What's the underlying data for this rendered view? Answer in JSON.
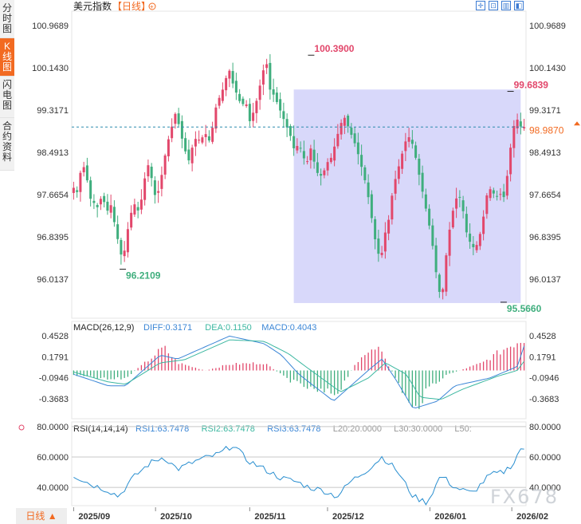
{
  "sidebar": {
    "tabs": [
      {
        "label": "分时图",
        "active": false
      },
      {
        "label": "K线图",
        "active": true
      },
      {
        "label": "闪电图",
        "active": false
      },
      {
        "label": "合约资料",
        "active": false
      }
    ]
  },
  "header": {
    "title": "美元指数",
    "period": "【日线】",
    "mode_icon": "circle-plus-icon"
  },
  "toolbar": {
    "icons": [
      "expand-icon",
      "compress-icon",
      "chart-toggle-icon",
      "back-icon"
    ]
  },
  "period_button": {
    "label": "日线 ▲"
  },
  "watermark": "FX678",
  "colors": {
    "up": "#e2476b",
    "down": "#3fae7d",
    "highlight": "#d4d4fa",
    "current": "#f26a21",
    "diff": "#3b86d6",
    "dea": "#3bb7a0"
  },
  "chart_data": [
    {
      "type": "candlestick",
      "title": "美元指数【日线】",
      "y_ticks": [
        "100.9689",
        "100.1430",
        "99.3171",
        "98.4913",
        "97.6654",
        "96.8395",
        "96.0137"
      ],
      "ylim": [
        95.3,
        101.25
      ],
      "x_ticks": [
        "2025/09",
        "2025/10",
        "2025/11",
        "2025/12",
        "2026/01",
        "2026/02"
      ],
      "x_tick_index": [
        0,
        20,
        43,
        62,
        87,
        107
      ],
      "current_price": "98.9870",
      "current_value": 98.987,
      "annotations": [
        {
          "label": "100.3900",
          "index": 58,
          "value": 100.39
        },
        {
          "label": "96.2109",
          "index": 12,
          "value": 96.2109
        },
        {
          "label": "95.5660",
          "index": 105,
          "value": 95.566
        },
        {
          "label": "99.6839",
          "index": 129,
          "value": 99.6839
        }
      ],
      "highlight": {
        "from_index": 65,
        "to_index": 132,
        "top": 99.72,
        "bottom": 95.55
      },
      "anchors": [
        [
          0,
          97.8
        ],
        [
          1,
          97.7
        ],
        [
          2,
          98.3
        ],
        [
          3,
          98.1
        ],
        [
          4,
          97.6
        ],
        [
          5,
          97.5
        ],
        [
          6,
          97.4
        ],
        [
          7,
          97.7
        ],
        [
          8,
          97.3
        ],
        [
          9,
          97.5
        ],
        [
          10,
          97.1
        ],
        [
          11,
          96.7
        ],
        [
          12,
          96.35
        ],
        [
          13,
          96.9
        ],
        [
          14,
          97.3
        ],
        [
          15,
          97.5
        ],
        [
          16,
          97.3
        ],
        [
          17,
          97.8
        ],
        [
          18,
          98.3
        ],
        [
          19,
          98.0
        ],
        [
          20,
          97.6
        ],
        [
          21,
          97.8
        ],
        [
          22,
          98.3
        ],
        [
          23,
          98.7
        ],
        [
          24,
          99.0
        ],
        [
          25,
          99.3
        ],
        [
          26,
          98.9
        ],
        [
          27,
          98.6
        ],
        [
          28,
          98.3
        ],
        [
          29,
          98.6
        ],
        [
          30,
          98.8
        ],
        [
          31,
          98.7
        ],
        [
          32,
          98.9
        ],
        [
          33,
          98.7
        ],
        [
          34,
          99.0
        ],
        [
          35,
          99.5
        ],
        [
          36,
          99.6
        ],
        [
          37,
          99.9
        ],
        [
          38,
          100.1
        ],
        [
          39,
          99.8
        ],
        [
          40,
          99.6
        ],
        [
          41,
          99.4
        ],
        [
          42,
          99.5
        ],
        [
          43,
          99.1
        ],
        [
          44,
          99.3
        ],
        [
          45,
          99.6
        ],
        [
          46,
          100.0
        ],
        [
          47,
          100.3
        ],
        [
          48,
          99.7
        ],
        [
          49,
          99.6
        ],
        [
          50,
          99.4
        ],
        [
          51,
          99.2
        ],
        [
          52,
          99.0
        ],
        [
          53,
          98.8
        ],
        [
          54,
          98.5
        ],
        [
          55,
          98.7
        ],
        [
          56,
          98.4
        ],
        [
          57,
          98.3
        ],
        [
          58,
          98.6
        ],
        [
          59,
          98.2
        ],
        [
          60,
          98.0
        ],
        [
          61,
          98.1
        ],
        [
          62,
          98.3
        ],
        [
          63,
          98.4
        ],
        [
          64,
          98.7
        ],
        [
          65,
          99.0
        ],
        [
          66,
          99.2
        ],
        [
          67,
          99.0
        ],
        [
          68,
          98.8
        ],
        [
          69,
          98.6
        ],
        [
          70,
          98.3
        ],
        [
          71,
          98.0
        ],
        [
          72,
          97.6
        ],
        [
          73,
          97.1
        ],
        [
          74,
          96.6
        ],
        [
          75,
          96.4
        ],
        [
          76,
          96.9
        ],
        [
          77,
          97.2
        ],
        [
          78,
          97.8
        ],
        [
          79,
          98.1
        ],
        [
          80,
          98.4
        ],
        [
          81,
          98.7
        ],
        [
          82,
          98.8
        ],
        [
          83,
          98.6
        ],
        [
          84,
          98.2
        ],
        [
          85,
          97.8
        ],
        [
          86,
          97.4
        ],
        [
          87,
          97.0
        ],
        [
          88,
          96.5
        ],
        [
          89,
          95.8
        ],
        [
          90,
          95.7
        ],
        [
          91,
          96.5
        ],
        [
          92,
          97.1
        ],
        [
          93,
          97.5
        ],
        [
          94,
          97.7
        ],
        [
          95,
          97.4
        ],
        [
          96,
          96.9
        ],
        [
          97,
          96.7
        ],
        [
          98,
          96.6
        ],
        [
          99,
          96.8
        ],
        [
          100,
          97.2
        ],
        [
          101,
          97.7
        ],
        [
          102,
          97.8
        ],
        [
          103,
          97.6
        ],
        [
          104,
          97.7
        ],
        [
          105,
          97.6
        ],
        [
          106,
          98.1
        ],
        [
          107,
          98.8
        ],
        [
          108,
          99.2
        ],
        [
          109,
          99.0
        ],
        [
          110,
          98.99
        ]
      ]
    },
    {
      "type": "macd",
      "title": "MACD(26,12,9)",
      "legend": [
        {
          "key": "diff",
          "label": "DIFF:0.3171"
        },
        {
          "key": "dea",
          "label": "DEA:0.1150"
        },
        {
          "key": "macd",
          "label": "MACD:0.4043"
        }
      ],
      "y_ticks": [
        "0.4528",
        "0.1791",
        "-0.0946",
        "-0.3683"
      ],
      "y_tick_values": [
        0.4528,
        0.1791,
        -0.0946,
        -0.3683
      ],
      "ylim": [
        -0.62,
        0.62
      ],
      "diff": [
        [
          0,
          -0.05
        ],
        [
          10,
          -0.2
        ],
        [
          15,
          -0.2
        ],
        [
          25,
          0.2
        ],
        [
          30,
          0.15
        ],
        [
          45,
          0.45
        ],
        [
          55,
          0.35
        ],
        [
          60,
          0.2
        ],
        [
          65,
          -0.05
        ],
        [
          75,
          -0.4
        ],
        [
          85,
          0.0
        ],
        [
          89,
          0.15
        ],
        [
          93,
          -0.12
        ],
        [
          98,
          -0.5
        ],
        [
          105,
          -0.4
        ],
        [
          110,
          -0.2
        ],
        [
          120,
          -0.1
        ],
        [
          128,
          0.05
        ],
        [
          130,
          0.32
        ]
      ],
      "dea": [
        [
          0,
          -0.02
        ],
        [
          10,
          -0.15
        ],
        [
          15,
          -0.18
        ],
        [
          25,
          0.1
        ],
        [
          32,
          0.14
        ],
        [
          45,
          0.4
        ],
        [
          55,
          0.38
        ],
        [
          62,
          0.22
        ],
        [
          67,
          0.05
        ],
        [
          77,
          -0.28
        ],
        [
          85,
          -0.1
        ],
        [
          90,
          0.1
        ],
        [
          96,
          -0.05
        ],
        [
          100,
          -0.35
        ],
        [
          106,
          -0.38
        ],
        [
          112,
          -0.25
        ],
        [
          122,
          -0.08
        ],
        [
          128,
          0.0
        ],
        [
          130,
          0.12
        ]
      ],
      "hist": [
        [
          0,
          -0.06
        ],
        [
          10,
          -0.12
        ],
        [
          15,
          -0.1
        ],
        [
          22,
          0.15
        ],
        [
          26,
          0.3
        ],
        [
          30,
          0.1
        ],
        [
          38,
          0.0
        ],
        [
          45,
          0.08
        ],
        [
          55,
          0.1
        ],
        [
          62,
          -0.12
        ],
        [
          70,
          -0.28
        ],
        [
          76,
          -0.3
        ],
        [
          83,
          0.2
        ],
        [
          88,
          0.28
        ],
        [
          93,
          -0.1
        ],
        [
          98,
          -0.55
        ],
        [
          103,
          -0.2
        ],
        [
          108,
          -0.05
        ],
        [
          118,
          0.1
        ],
        [
          125,
          0.3
        ],
        [
          129,
          0.4
        ]
      ]
    },
    {
      "type": "rsi",
      "title": "RSI(14,14,14)",
      "legend": [
        {
          "key": "rsi1",
          "label": "RSI1:63.7478"
        },
        {
          "key": "rsi2",
          "label": "RSI2:63.7478"
        },
        {
          "key": "rsi3",
          "label": "RSI3:63.7478"
        },
        {
          "key": "l20",
          "label": "L20:20.0000"
        },
        {
          "key": "l30",
          "label": "L30:30.0000"
        },
        {
          "key": "l50",
          "label": "L50:"
        }
      ],
      "y_ticks": [
        "80.0000",
        "60.0000",
        "40.0000"
      ],
      "y_tick_values": [
        80,
        60,
        40
      ],
      "ylim": [
        28,
        82
      ],
      "values": [
        [
          0,
          48
        ],
        [
          5,
          42
        ],
        [
          10,
          38
        ],
        [
          13,
          34
        ],
        [
          17,
          46
        ],
        [
          22,
          56
        ],
        [
          26,
          60
        ],
        [
          30,
          52
        ],
        [
          36,
          58
        ],
        [
          42,
          62
        ],
        [
          46,
          68
        ],
        [
          50,
          58
        ],
        [
          55,
          52
        ],
        [
          60,
          46
        ],
        [
          64,
          44
        ],
        [
          68,
          40
        ],
        [
          72,
          38
        ],
        [
          76,
          34
        ],
        [
          80,
          44
        ],
        [
          85,
          52
        ],
        [
          89,
          60
        ],
        [
          93,
          52
        ],
        [
          98,
          34
        ],
        [
          102,
          30
        ],
        [
          106,
          48
        ],
        [
          110,
          40
        ],
        [
          115,
          36
        ],
        [
          120,
          48
        ],
        [
          124,
          50
        ],
        [
          127,
          56
        ],
        [
          129,
          66
        ],
        [
          130,
          63.7
        ]
      ]
    }
  ]
}
